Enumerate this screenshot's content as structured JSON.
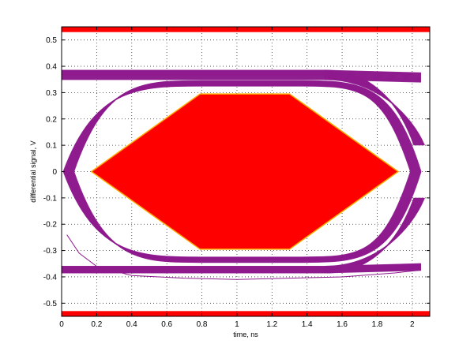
{
  "chart_data": {
    "type": "line",
    "title": "",
    "xlabel": "time, ns",
    "ylabel": "differential signal, V",
    "xlim": [
      0,
      2.1
    ],
    "ylim": [
      -0.55,
      0.55
    ],
    "grid": true,
    "x_ticks": [
      0,
      0.2,
      0.4,
      0.6,
      0.8,
      1,
      1.2,
      1.4,
      1.6,
      1.8,
      2
    ],
    "x_tick_labels": [
      "0",
      "0.2",
      "0.4",
      "0.6",
      "0.8",
      "1",
      "1.2",
      "1.4",
      "1.6",
      "1.8",
      "2"
    ],
    "y_ticks": [
      0.5,
      0.4,
      0.3,
      0.2,
      0.1,
      0,
      -0.1,
      -0.2,
      -0.3,
      -0.4,
      -0.5
    ],
    "y_tick_labels": [
      "0.5",
      "0.4",
      "0.3",
      "0.2",
      "0.1",
      "0",
      "-0.1",
      "-0.2",
      "-0.3",
      "-0.4",
      "-0.5"
    ],
    "colors": {
      "signal": "#8e1b8e",
      "mask": "#ff0000",
      "mask_edge": "#ffaa00",
      "grid": "#333333"
    },
    "mask": {
      "polygon": [
        [
          0.17,
          0
        ],
        [
          0.79,
          0.295
        ],
        [
          1.3,
          0.295
        ],
        [
          1.92,
          0
        ],
        [
          1.3,
          -0.295
        ],
        [
          0.79,
          -0.295
        ]
      ],
      "upper_band": [
        0.53,
        0.55
      ],
      "lower_band": [
        -0.55,
        -0.53
      ]
    },
    "eye": {
      "crossing_left": 0.04,
      "crossing_right": 2.02,
      "levels": {
        "high_top": 0.385,
        "high_bottom": 0.35,
        "inner_high": 0.335,
        "inner_low": -0.335,
        "low_top": -0.36,
        "low_bottom": -0.385
      }
    },
    "straggler_trace": {
      "x": [
        0.03,
        0.1,
        0.2,
        0.4,
        0.7,
        1.0,
        1.3,
        1.6,
        1.9,
        2.04
      ],
      "y": [
        -0.24,
        -0.31,
        -0.36,
        -0.395,
        -0.405,
        -0.41,
        -0.405,
        -0.4,
        -0.385,
        -0.375
      ]
    },
    "trace_count": 24
  }
}
